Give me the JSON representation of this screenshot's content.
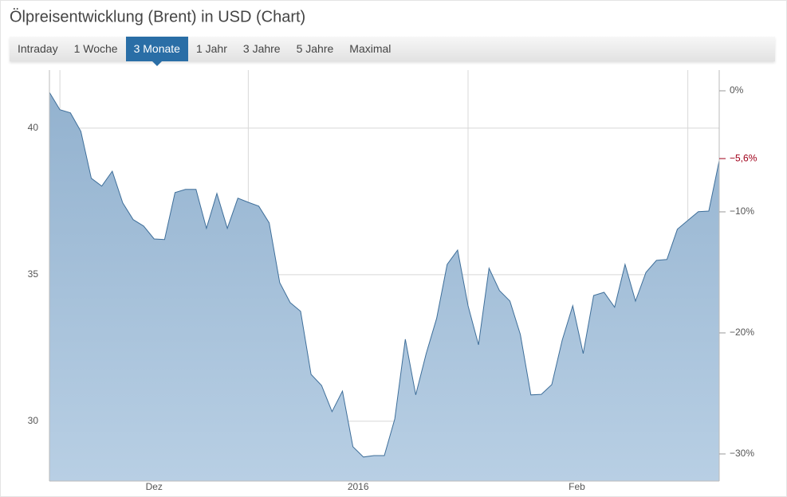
{
  "chart_data": {
    "type": "area",
    "title": "Ölpreisentwicklung (Brent) in USD (Chart)",
    "values": [
      41.22,
      40.63,
      40.52,
      39.89,
      38.29,
      38.02,
      38.53,
      37.45,
      36.88,
      36.66,
      36.22,
      36.2,
      37.8,
      37.91,
      37.91,
      36.58,
      37.77,
      36.58,
      37.61,
      37.47,
      37.34,
      36.77,
      34.73,
      34.05,
      33.75,
      31.6,
      31.22,
      30.33,
      31.03,
      29.13,
      28.78,
      28.83,
      28.83,
      30.08,
      32.8,
      30.9,
      32.31,
      33.51,
      35.35,
      35.84,
      33.94,
      32.61,
      35.22,
      34.46,
      34.1,
      32.96,
      30.9,
      30.92,
      31.25,
      32.77,
      33.94,
      32.31,
      34.29,
      34.4,
      33.89,
      35.35,
      34.1,
      35.08,
      35.49,
      35.52,
      36.55,
      36.85,
      37.15,
      37.17,
      38.89
    ],
    "color": "#3f6f9a",
    "xlim": [
      0,
      64
    ],
    "xticks": [
      {
        "value": 10,
        "label": "Dez"
      },
      {
        "value": 29.5,
        "label": "2016"
      },
      {
        "value": 50.4,
        "label": "Feb"
      }
    ],
    "xgrid": [
      1,
      19,
      40,
      61
    ],
    "ylim": [
      27.96,
      41.98
    ],
    "yticks": [
      30,
      35,
      40
    ],
    "y2lim": [
      -32.24,
      1.71
    ],
    "y2ticks": [
      {
        "value": 0,
        "label": "0%"
      },
      {
        "value": -10,
        "label": "−10%"
      },
      {
        "value": -20,
        "label": "−20%"
      },
      {
        "value": -30,
        "label": "−30%"
      }
    ],
    "current": {
      "value": -5.6,
      "label": "−5,6%",
      "color": "#a0001a"
    },
    "grid": true
  },
  "tabs": {
    "items": [
      "Intraday",
      "1 Woche",
      "3 Monate",
      "1 Jahr",
      "3 Jahre",
      "5 Jahre",
      "Maximal"
    ],
    "active_index": 2
  }
}
